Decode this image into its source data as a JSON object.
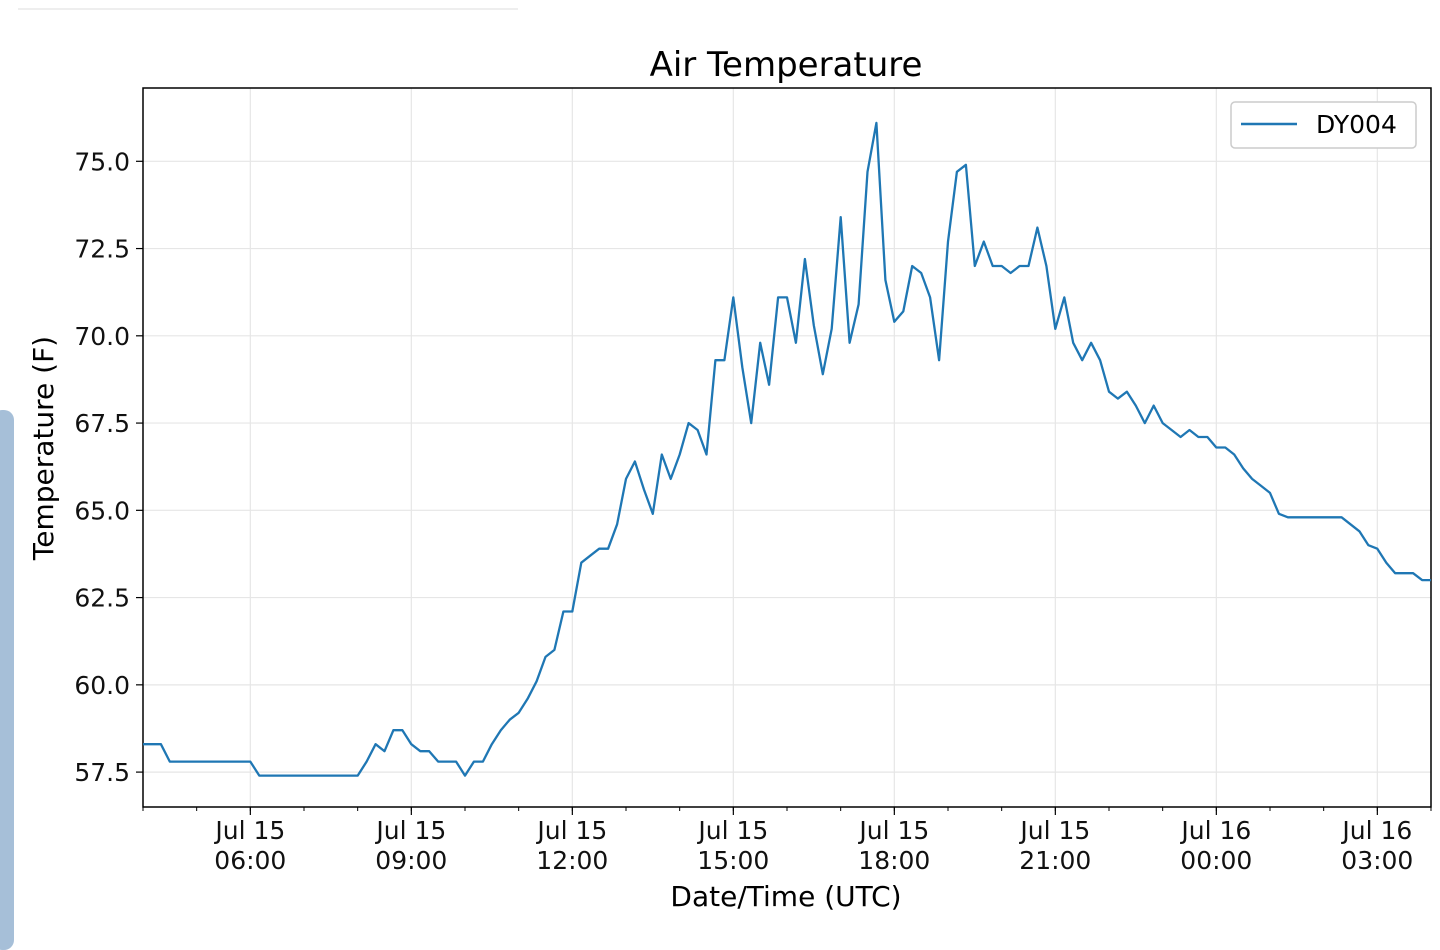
{
  "chart_data": {
    "type": "line",
    "title": "Air Temperature",
    "xlabel": "Date/Time (UTC)",
    "ylabel": "Temperature (F)",
    "x_start": "2019-07-15 04:00",
    "x_end": "2019-07-16 04:00",
    "xlim": [
      "2019-07-15 04:00",
      "2019-07-16 04:00"
    ],
    "ylim": [
      56.5,
      77.1
    ],
    "yticks": [
      57.5,
      60.0,
      62.5,
      65.0,
      67.5,
      70.0,
      72.5,
      75.0
    ],
    "ytick_labels": [
      "57.5",
      "60.0",
      "62.5",
      "65.0",
      "67.5",
      "70.0",
      "72.5",
      "75.0"
    ],
    "xticks": [
      {
        "t": "2019-07-15 06:00",
        "line1": "Jul 15",
        "line2": "06:00"
      },
      {
        "t": "2019-07-15 09:00",
        "line1": "Jul 15",
        "line2": "09:00"
      },
      {
        "t": "2019-07-15 12:00",
        "line1": "Jul 15",
        "line2": "12:00"
      },
      {
        "t": "2019-07-15 15:00",
        "line1": "Jul 15",
        "line2": "15:00"
      },
      {
        "t": "2019-07-15 18:00",
        "line1": "Jul 15",
        "line2": "18:00"
      },
      {
        "t": "2019-07-15 21:00",
        "line1": "Jul 15",
        "line2": "21:00"
      },
      {
        "t": "2019-07-16 00:00",
        "line1": "Jul 16",
        "line2": "00:00"
      },
      {
        "t": "2019-07-16 03:00",
        "line1": "Jul 16",
        "line2": "03:00"
      }
    ],
    "grid": true,
    "legend_position": "top-right",
    "series": [
      {
        "name": "DY004",
        "color": "#1f77b4",
        "x": [
          "2019-07-15 04:00",
          "2019-07-15 04:20",
          "2019-07-15 04:30",
          "2019-07-15 05:00",
          "2019-07-15 05:30",
          "2019-07-15 06:00",
          "2019-07-15 06:10",
          "2019-07-15 06:20",
          "2019-07-15 07:00",
          "2019-07-15 07:30",
          "2019-07-15 08:00",
          "2019-07-15 08:10",
          "2019-07-15 08:20",
          "2019-07-15 08:30",
          "2019-07-15 08:40",
          "2019-07-15 08:50",
          "2019-07-15 09:00",
          "2019-07-15 09:10",
          "2019-07-15 09:20",
          "2019-07-15 09:30",
          "2019-07-15 09:40",
          "2019-07-15 09:50",
          "2019-07-15 10:00",
          "2019-07-15 10:10",
          "2019-07-15 10:20",
          "2019-07-15 10:30",
          "2019-07-15 10:40",
          "2019-07-15 10:50",
          "2019-07-15 11:00",
          "2019-07-15 11:10",
          "2019-07-15 11:20",
          "2019-07-15 11:30",
          "2019-07-15 11:40",
          "2019-07-15 11:50",
          "2019-07-15 12:00",
          "2019-07-15 12:10",
          "2019-07-15 12:20",
          "2019-07-15 12:30",
          "2019-07-15 12:40",
          "2019-07-15 12:50",
          "2019-07-15 13:00",
          "2019-07-15 13:10",
          "2019-07-15 13:20",
          "2019-07-15 13:30",
          "2019-07-15 13:40",
          "2019-07-15 13:50",
          "2019-07-15 14:00",
          "2019-07-15 14:10",
          "2019-07-15 14:20",
          "2019-07-15 14:30",
          "2019-07-15 14:40",
          "2019-07-15 14:50",
          "2019-07-15 15:00",
          "2019-07-15 15:10",
          "2019-07-15 15:20",
          "2019-07-15 15:30",
          "2019-07-15 15:40",
          "2019-07-15 15:50",
          "2019-07-15 16:00",
          "2019-07-15 16:10",
          "2019-07-15 16:20",
          "2019-07-15 16:30",
          "2019-07-15 16:40",
          "2019-07-15 16:50",
          "2019-07-15 17:00",
          "2019-07-15 17:10",
          "2019-07-15 17:20",
          "2019-07-15 17:30",
          "2019-07-15 17:40",
          "2019-07-15 17:50",
          "2019-07-15 18:00",
          "2019-07-15 18:10",
          "2019-07-15 18:20",
          "2019-07-15 18:30",
          "2019-07-15 18:40",
          "2019-07-15 18:50",
          "2019-07-15 19:00",
          "2019-07-15 19:10",
          "2019-07-15 19:20",
          "2019-07-15 19:30",
          "2019-07-15 19:40",
          "2019-07-15 19:50",
          "2019-07-15 20:00",
          "2019-07-15 20:10",
          "2019-07-15 20:20",
          "2019-07-15 20:30",
          "2019-07-15 20:40",
          "2019-07-15 20:50",
          "2019-07-15 21:00",
          "2019-07-15 21:10",
          "2019-07-15 21:20",
          "2019-07-15 21:30",
          "2019-07-15 21:40",
          "2019-07-15 21:50",
          "2019-07-15 22:00",
          "2019-07-15 22:10",
          "2019-07-15 22:20",
          "2019-07-15 22:30",
          "2019-07-15 22:40",
          "2019-07-15 22:50",
          "2019-07-15 23:00",
          "2019-07-15 23:10",
          "2019-07-15 23:20",
          "2019-07-15 23:30",
          "2019-07-15 23:40",
          "2019-07-15 23:50",
          "2019-07-16 00:00",
          "2019-07-16 00:10",
          "2019-07-16 00:20",
          "2019-07-16 00:30",
          "2019-07-16 00:40",
          "2019-07-16 00:50",
          "2019-07-16 01:00",
          "2019-07-16 01:10",
          "2019-07-16 01:20",
          "2019-07-16 01:30",
          "2019-07-16 01:40",
          "2019-07-16 01:50",
          "2019-07-16 02:00",
          "2019-07-16 02:10",
          "2019-07-16 02:20",
          "2019-07-16 02:30",
          "2019-07-16 02:40",
          "2019-07-16 02:50",
          "2019-07-16 03:00",
          "2019-07-16 03:10",
          "2019-07-16 03:20",
          "2019-07-16 03:30",
          "2019-07-16 03:40",
          "2019-07-16 03:50",
          "2019-07-16 04:00"
        ],
        "values": [
          58.3,
          58.3,
          57.8,
          57.8,
          57.8,
          57.8,
          57.4,
          57.4,
          57.4,
          57.4,
          57.4,
          57.8,
          58.3,
          58.1,
          58.7,
          58.7,
          58.3,
          58.1,
          58.1,
          57.8,
          57.8,
          57.8,
          57.4,
          57.8,
          57.8,
          58.3,
          58.7,
          59.0,
          59.2,
          59.6,
          60.1,
          60.8,
          61.0,
          62.1,
          62.1,
          63.5,
          63.7,
          63.9,
          63.9,
          64.6,
          65.9,
          66.4,
          65.6,
          64.9,
          66.6,
          65.9,
          66.6,
          67.5,
          67.3,
          66.6,
          69.3,
          69.3,
          71.1,
          69.1,
          67.5,
          69.8,
          68.6,
          71.1,
          71.1,
          69.8,
          72.2,
          70.3,
          68.9,
          70.2,
          73.4,
          69.8,
          70.9,
          74.7,
          76.1,
          71.6,
          70.4,
          70.7,
          72.0,
          71.8,
          71.1,
          69.3,
          72.7,
          74.7,
          74.9,
          72.0,
          72.7,
          72.0,
          72.0,
          71.8,
          72.0,
          72.0,
          73.1,
          72.0,
          70.2,
          71.1,
          69.8,
          69.3,
          69.8,
          69.3,
          68.4,
          68.2,
          68.4,
          68.0,
          67.5,
          68.0,
          67.5,
          67.3,
          67.1,
          67.3,
          67.1,
          67.1,
          66.8,
          66.8,
          66.6,
          66.2,
          65.9,
          65.7,
          65.5,
          64.9,
          64.8,
          64.8,
          64.8,
          64.8,
          64.8,
          64.8,
          64.8,
          64.6,
          64.4,
          64.0,
          63.9,
          63.5,
          63.2,
          63.2,
          63.2,
          63.0,
          63.0
        ]
      }
    ]
  }
}
